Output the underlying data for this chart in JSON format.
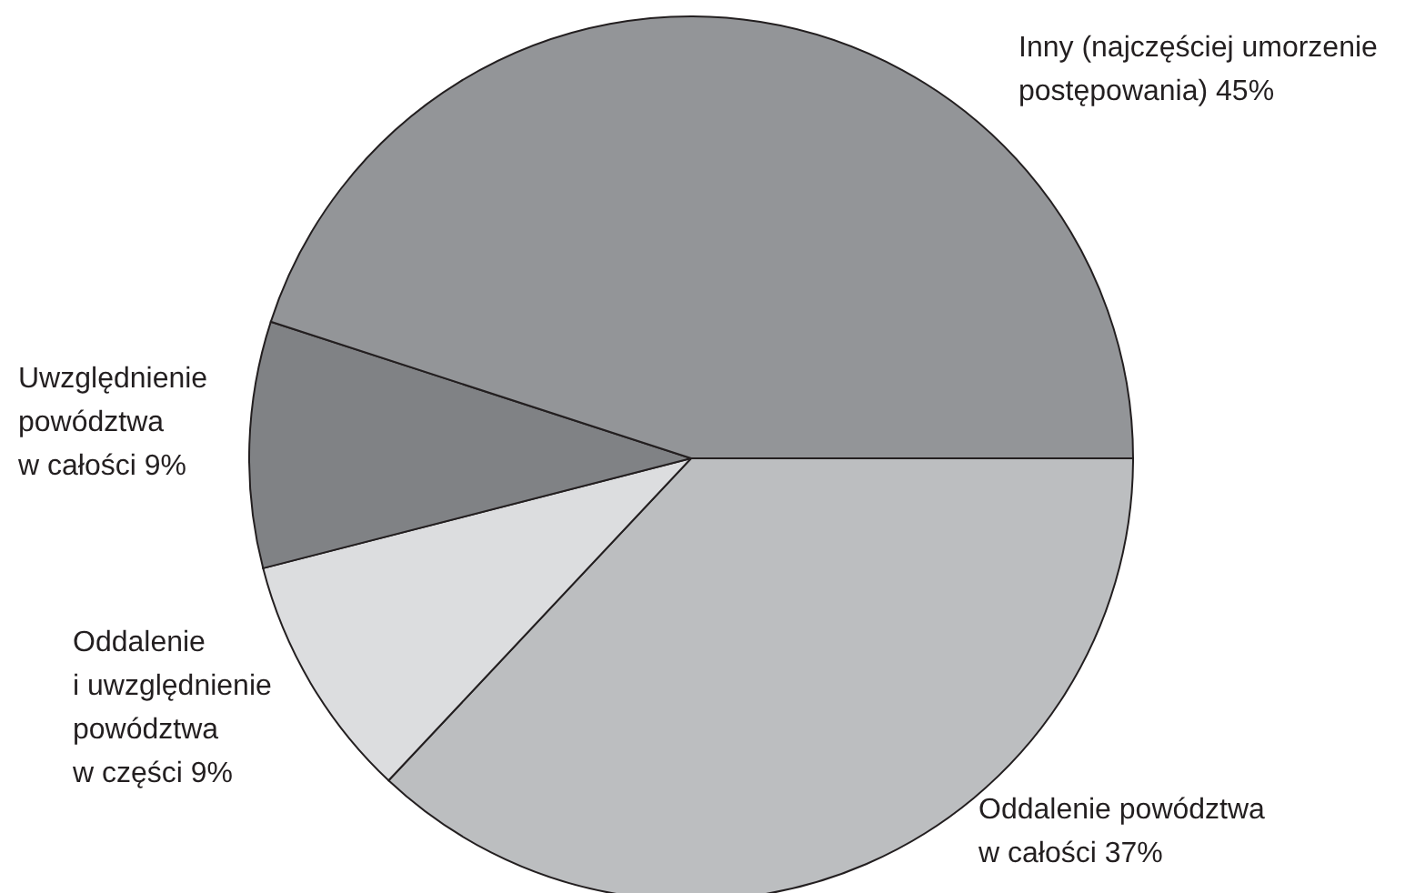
{
  "chart_data": {
    "type": "pie",
    "categories": [
      "Oddalenie powództwa w całości",
      "Oddalenie i uwzględnienie powództwa w części",
      "Uwzględnienie powództwa w całości",
      "Inny (najczęściej umorzenie postępowania)"
    ],
    "values": [
      37,
      9,
      9,
      45
    ],
    "value_labels": [
      "37%",
      "9%",
      "9%",
      "45%"
    ],
    "colors": [
      "#bcbec0",
      "#dcdddf",
      "#808285",
      "#939598"
    ]
  }
}
